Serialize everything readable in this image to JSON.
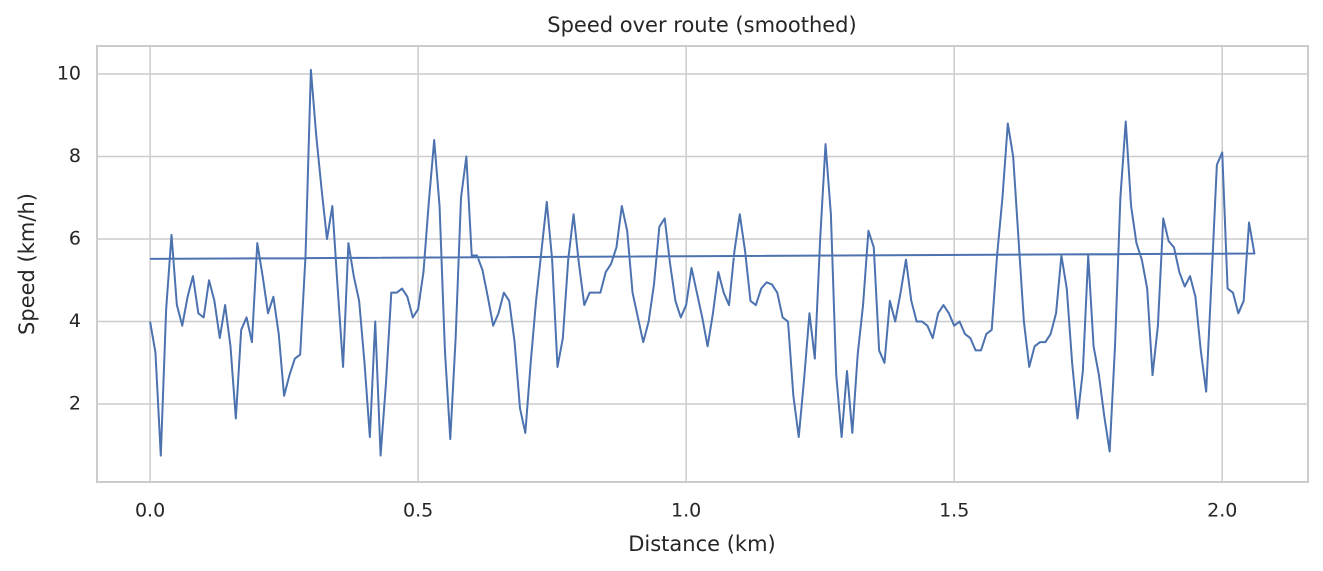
{
  "chart_data": {
    "type": "line",
    "title": "Speed over route (smoothed)",
    "x_label": "Distance (km)",
    "y_label": "Speed (km/h)",
    "x": [
      0.0,
      0.01,
      0.02,
      0.03,
      0.04,
      0.05,
      0.06,
      0.07,
      0.08,
      0.09,
      0.1,
      0.11,
      0.12,
      0.13,
      0.14,
      0.15,
      0.16,
      0.17,
      0.18,
      0.19,
      0.2,
      0.21,
      0.22,
      0.23,
      0.24,
      0.25,
      0.26,
      0.27,
      0.28,
      0.29,
      0.3,
      0.31,
      0.32,
      0.33,
      0.34,
      0.35,
      0.36,
      0.37,
      0.38,
      0.39,
      0.4,
      0.41,
      0.42,
      0.43,
      0.44,
      0.45,
      0.46,
      0.47,
      0.48,
      0.49,
      0.5,
      0.51,
      0.52,
      0.53,
      0.54,
      0.55,
      0.56,
      0.57,
      0.58,
      0.59,
      0.6,
      0.61,
      0.62,
      0.63,
      0.64,
      0.65,
      0.66,
      0.67,
      0.68,
      0.69,
      0.7,
      0.71,
      0.72,
      0.73,
      0.74,
      0.75,
      0.76,
      0.77,
      0.78,
      0.79,
      0.8,
      0.81,
      0.82,
      0.83,
      0.84,
      0.85,
      0.86,
      0.87,
      0.88,
      0.89,
      0.9,
      0.91,
      0.92,
      0.93,
      0.94,
      0.95,
      0.96,
      0.97,
      0.98,
      0.99,
      1.0,
      1.01,
      1.02,
      1.03,
      1.04,
      1.05,
      1.06,
      1.07,
      1.08,
      1.09,
      1.1,
      1.11,
      1.12,
      1.13,
      1.14,
      1.15,
      1.16,
      1.17,
      1.18,
      1.19,
      1.2,
      1.21,
      1.22,
      1.23,
      1.24,
      1.25,
      1.26,
      1.27,
      1.28,
      1.29,
      1.3,
      1.31,
      1.32,
      1.33,
      1.34,
      1.35,
      1.36,
      1.37,
      1.38,
      1.39,
      1.4,
      1.41,
      1.42,
      1.43,
      1.44,
      1.45,
      1.46,
      1.47,
      1.48,
      1.49,
      1.5,
      1.51,
      1.52,
      1.53,
      1.54,
      1.55,
      1.56,
      1.57,
      1.58,
      1.59,
      1.6,
      1.61,
      1.62,
      1.63,
      1.64,
      1.65,
      1.66,
      1.67,
      1.68,
      1.69,
      1.7,
      1.71,
      1.72,
      1.73,
      1.74,
      1.75,
      1.76,
      1.77,
      1.78,
      1.79,
      1.8,
      1.81,
      1.82,
      1.83,
      1.84,
      1.85,
      1.86,
      1.87,
      1.88,
      1.89,
      1.9,
      1.91,
      1.92,
      1.93,
      1.94,
      1.95,
      1.96,
      1.97,
      1.98,
      1.99,
      2.0,
      2.01,
      2.02,
      2.03,
      2.04,
      2.05,
      2.06,
      0
    ],
    "values": [
      4.0,
      3.25,
      0.75,
      4.3,
      6.1,
      4.4,
      3.9,
      4.6,
      5.1,
      4.2,
      4.1,
      5.0,
      4.5,
      3.6,
      4.4,
      3.4,
      1.65,
      3.8,
      4.1,
      3.5,
      5.9,
      5.1,
      4.2,
      4.6,
      3.7,
      2.2,
      2.7,
      3.1,
      3.2,
      5.6,
      10.1,
      8.5,
      7.2,
      6.0,
      6.8,
      4.8,
      2.9,
      5.9,
      5.1,
      4.5,
      3.0,
      1.2,
      4.0,
      0.75,
      2.5,
      4.7,
      4.7,
      4.8,
      4.6,
      4.1,
      4.3,
      5.2,
      6.9,
      8.4,
      6.8,
      3.3,
      1.15,
      3.6,
      7.0,
      8.0,
      5.6,
      5.6,
      5.25,
      4.6,
      3.9,
      4.2,
      4.7,
      4.5,
      3.5,
      1.9,
      1.3,
      3.0,
      4.5,
      5.7,
      6.9,
      5.5,
      2.9,
      3.6,
      5.5,
      6.6,
      5.4,
      4.4,
      4.7,
      4.7,
      4.7,
      5.2,
      5.4,
      5.8,
      6.8,
      6.2,
      4.7,
      4.1,
      3.5,
      4.0,
      4.9,
      6.3,
      6.5,
      5.4,
      4.5,
      4.1,
      4.4,
      5.3,
      4.7,
      4.1,
      3.4,
      4.2,
      5.2,
      4.7,
      4.4,
      5.7,
      6.6,
      5.7,
      4.5,
      4.4,
      4.8,
      4.95,
      4.9,
      4.7,
      4.1,
      4.0,
      2.2,
      1.2,
      2.6,
      4.2,
      3.1,
      6.0,
      8.3,
      6.6,
      2.7,
      1.2,
      2.8,
      1.3,
      3.2,
      4.4,
      6.2,
      5.8,
      3.3,
      3.0,
      4.5,
      4.0,
      4.7,
      5.5,
      4.5,
      4.0,
      4.0,
      3.9,
      3.6,
      4.2,
      4.4,
      4.2,
      3.9,
      4.0,
      3.7,
      3.6,
      3.3,
      3.3,
      3.7,
      3.8,
      5.6,
      7.0,
      8.8,
      8.0,
      6.0,
      4.0,
      2.9,
      3.4,
      3.5,
      3.5,
      3.7,
      4.2,
      5.6,
      4.8,
      3.0,
      1.65,
      2.8,
      5.6,
      3.4,
      2.7,
      1.7,
      0.85,
      3.4,
      7.0,
      8.85,
      6.8,
      5.9,
      5.5,
      4.8,
      2.7,
      3.9,
      6.5,
      5.95,
      5.8,
      5.2,
      4.85,
      5.1,
      4.6,
      3.3,
      2.3,
      5.0,
      7.8,
      8.1,
      4.8,
      4.7,
      4.2,
      4.5,
      6.4,
      5.65,
      5.52
    ],
    "color": "#4c72b0",
    "xlim": [
      -0.099,
      2.16
    ],
    "ylim": [
      0.11,
      10.68
    ],
    "xticks": [
      {
        "value": 0,
        "label": "0.0"
      },
      0.5,
      {
        "value": 1,
        "label": "1.0"
      },
      1.5,
      {
        "value": 2,
        "label": "2.0"
      }
    ],
    "yticks": [
      2,
      4,
      6,
      8,
      10
    ],
    "grid": true
  }
}
